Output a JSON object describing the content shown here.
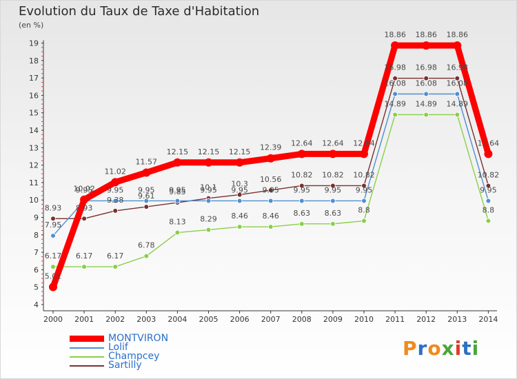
{
  "title": "Evolution du Taux de Taxe d'Habitation",
  "unit": "(en %)",
  "brand": "Proxiti",
  "chart_data": {
    "type": "line",
    "x": [
      "2000",
      "2001",
      "2002",
      "2003",
      "2004",
      "2005",
      "2006",
      "2007",
      "2008",
      "2009",
      "2010",
      "2011",
      "2012",
      "2013",
      "2014"
    ],
    "ylim": [
      4,
      19
    ],
    "yticks": [
      4,
      5,
      6,
      7,
      8,
      9,
      10,
      11,
      12,
      13,
      14,
      15,
      16,
      17,
      18,
      19
    ],
    "grid": false,
    "legend_position": "bottom-left",
    "series": [
      {
        "name": "MONTVIRON",
        "color": "#ff0000",
        "values": [
          5.01,
          10.02,
          11.02,
          11.57,
          12.15,
          12.15,
          12.15,
          12.39,
          12.64,
          12.64,
          12.64,
          18.86,
          18.86,
          18.86,
          12.64
        ],
        "labels": [
          "5.01",
          "10.02",
          "11.02",
          "11.57",
          "12.15",
          "12.15",
          "12.15",
          "12.39",
          "12.64",
          "12.64",
          "12.64",
          "18.86",
          "18.86",
          "18.86",
          "12.64"
        ]
      },
      {
        "name": "Lolif",
        "color": "#4f8fd0",
        "values": [
          7.95,
          9.95,
          9.95,
          9.95,
          9.95,
          9.95,
          9.95,
          9.95,
          9.95,
          9.95,
          9.95,
          16.08,
          16.08,
          16.08,
          9.95
        ],
        "labels": [
          "7.95",
          "9.95",
          "9.95",
          "9.95",
          "9.95",
          "9.95",
          "9.95",
          "9.95",
          "9.95",
          "9.95",
          "9.95",
          "16.08",
          "16.08",
          "16.08",
          "9.95"
        ]
      },
      {
        "name": "Champcey",
        "color": "#88d045",
        "values": [
          6.17,
          6.17,
          6.17,
          6.78,
          8.13,
          8.29,
          8.46,
          8.46,
          8.63,
          8.63,
          8.8,
          14.89,
          14.89,
          14.89,
          8.8
        ],
        "labels": [
          "6.17",
          "6.17",
          "6.17",
          "6.78",
          "8.13",
          "8.29",
          "8.46",
          "8.46",
          "8.63",
          "8.63",
          "8.8",
          "14.89",
          "14.89",
          "14.89",
          "8.8"
        ]
      },
      {
        "name": "Sartilly",
        "color": "#7a2f2f",
        "values": [
          8.93,
          8.93,
          9.38,
          9.61,
          9.85,
          10.1,
          10.3,
          10.56,
          10.82,
          10.82,
          10.82,
          16.98,
          16.98,
          16.98,
          10.82
        ],
        "labels": [
          "8.93",
          "8.93",
          "9.38",
          "9.61",
          "9.85",
          "10.1",
          "10.3",
          "10.56",
          "10.82",
          "10.82",
          "10.82",
          "16.98",
          "16.98",
          "16.98",
          "10.82"
        ]
      }
    ]
  }
}
